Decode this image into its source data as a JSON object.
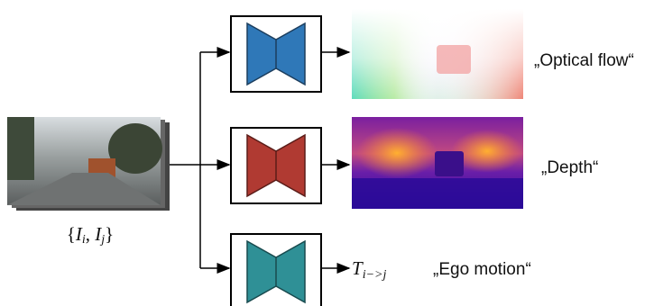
{
  "input": {
    "label_parts": [
      "{",
      "I",
      "i",
      ", ",
      "I",
      "j",
      "}"
    ]
  },
  "outputs": [
    {
      "label": "„Optical flow“"
    },
    {
      "label": "„Depth“"
    },
    {
      "symbol_parts": [
        "T",
        "i−>j"
      ],
      "label": "„Ego motion“"
    }
  ]
}
